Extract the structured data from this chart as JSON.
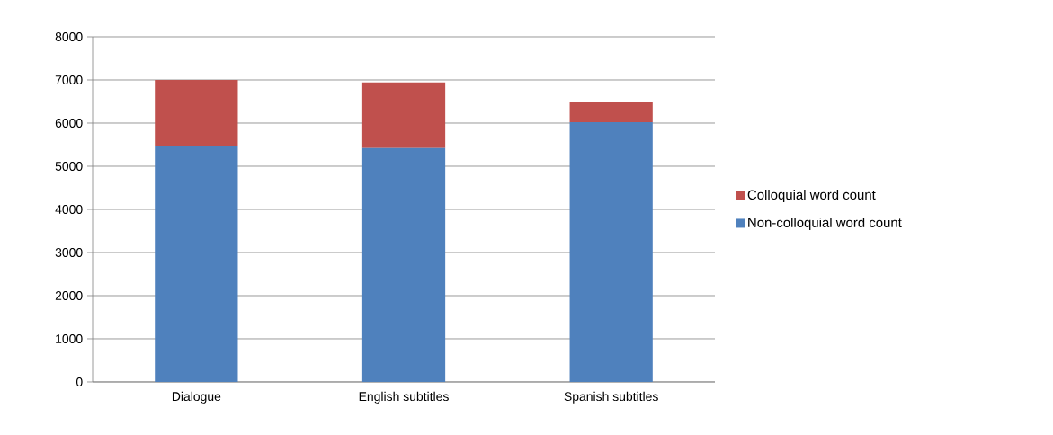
{
  "chart_data": {
    "type": "bar",
    "stacked": true,
    "categories": [
      "Dialogue",
      "English subtitles",
      "Spanish subtitles"
    ],
    "series": [
      {
        "name": "Non-colloquial word count",
        "color": "#4f81bd",
        "values": [
          5460,
          5420,
          6020
        ]
      },
      {
        "name": "Colloquial word count",
        "color": "#c0504d",
        "values": [
          1540,
          1520,
          460
        ]
      }
    ],
    "ylim": [
      0,
      8000
    ],
    "yticks": [
      0,
      1000,
      2000,
      3000,
      4000,
      5000,
      6000,
      7000,
      8000
    ],
    "grid": "y",
    "legend": "right"
  }
}
